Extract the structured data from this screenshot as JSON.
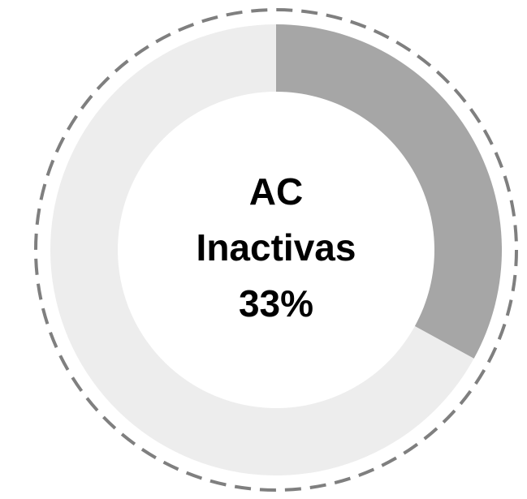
{
  "chart_data": {
    "type": "donut",
    "title_lines": [
      "AC",
      "Inactivas"
    ],
    "values": [
      33,
      67
    ],
    "value_labels": [
      "33%",
      null
    ],
    "colors": [
      "#a6a6a6",
      "#ededed"
    ],
    "start_angle": 0,
    "direction": "clockwise",
    "dashed_border": true,
    "border_color": "#7f7f7f"
  }
}
